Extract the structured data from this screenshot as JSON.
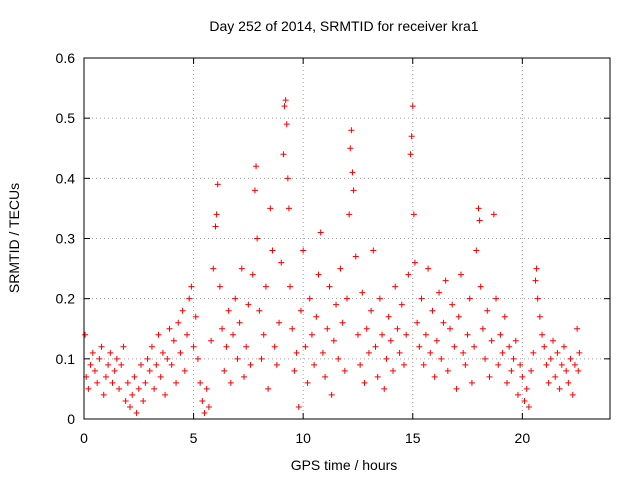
{
  "chart_data": {
    "type": "scatter",
    "title": "Day 252 of 2014, SRMTID for receiver kra1",
    "xlabel": "GPS time / hours",
    "ylabel": "SRMTID / TECUs",
    "xlim": [
      0,
      24
    ],
    "ylim": [
      0,
      0.6
    ],
    "x_ticks": [
      0,
      5,
      10,
      15,
      20
    ],
    "x_tick_labels": [
      "0",
      "5",
      "10",
      "15",
      "20"
    ],
    "y_ticks": [
      0,
      0.1,
      0.2,
      0.3,
      0.4,
      0.5,
      0.6
    ],
    "y_tick_labels": [
      "0",
      "0.1",
      "0.2",
      "0.3",
      "0.4",
      "0.5",
      "0.6"
    ],
    "grid": true,
    "marker": "+",
    "color": "#ff0000",
    "series": [
      {
        "name": "SRMTID",
        "points": [
          [
            0.05,
            0.14
          ],
          [
            0.1,
            0.07
          ],
          [
            0.2,
            0.05
          ],
          [
            0.3,
            0.09
          ],
          [
            0.4,
            0.11
          ],
          [
            0.5,
            0.08
          ],
          [
            0.6,
            0.06
          ],
          [
            0.7,
            0.1
          ],
          [
            0.8,
            0.12
          ],
          [
            0.9,
            0.04
          ],
          [
            1.0,
            0.07
          ],
          [
            1.1,
            0.09
          ],
          [
            1.2,
            0.11
          ],
          [
            1.3,
            0.06
          ],
          [
            1.4,
            0.08
          ],
          [
            1.5,
            0.1
          ],
          [
            1.6,
            0.05
          ],
          [
            1.7,
            0.09
          ],
          [
            1.8,
            0.12
          ],
          [
            1.9,
            0.03
          ],
          [
            2.0,
            0.06
          ],
          [
            2.1,
            0.02
          ],
          [
            2.2,
            0.04
          ],
          [
            2.3,
            0.07
          ],
          [
            2.4,
            0.01
          ],
          [
            2.5,
            0.05
          ],
          [
            2.6,
            0.09
          ],
          [
            2.7,
            0.03
          ],
          [
            2.8,
            0.06
          ],
          [
            2.9,
            0.1
          ],
          [
            3.0,
            0.08
          ],
          [
            3.1,
            0.12
          ],
          [
            3.2,
            0.05
          ],
          [
            3.3,
            0.09
          ],
          [
            3.4,
            0.14
          ],
          [
            3.5,
            0.07
          ],
          [
            3.6,
            0.11
          ],
          [
            3.7,
            0.04
          ],
          [
            3.8,
            0.1
          ],
          [
            3.9,
            0.15
          ],
          [
            4.0,
            0.09
          ],
          [
            4.1,
            0.13
          ],
          [
            4.2,
            0.06
          ],
          [
            4.3,
            0.16
          ],
          [
            4.4,
            0.11
          ],
          [
            4.5,
            0.18
          ],
          [
            4.6,
            0.08
          ],
          [
            4.7,
            0.14
          ],
          [
            4.8,
            0.2
          ],
          [
            4.9,
            0.22
          ],
          [
            5.0,
            0.12
          ],
          [
            5.1,
            0.17
          ],
          [
            5.2,
            0.1
          ],
          [
            5.3,
            0.06
          ],
          [
            5.4,
            0.03
          ],
          [
            5.5,
            0.01
          ],
          [
            5.6,
            0.05
          ],
          [
            5.7,
            0.02
          ],
          [
            5.8,
            0.13
          ],
          [
            5.9,
            0.25
          ],
          [
            6.0,
            0.32
          ],
          [
            6.05,
            0.34
          ],
          [
            6.1,
            0.39
          ],
          [
            6.2,
            0.22
          ],
          [
            6.3,
            0.15
          ],
          [
            6.4,
            0.08
          ],
          [
            6.5,
            0.12
          ],
          [
            6.6,
            0.18
          ],
          [
            6.7,
            0.06
          ],
          [
            6.8,
            0.14
          ],
          [
            6.9,
            0.2
          ],
          [
            7.0,
            0.1
          ],
          [
            7.1,
            0.16
          ],
          [
            7.2,
            0.25
          ],
          [
            7.3,
            0.07
          ],
          [
            7.4,
            0.12
          ],
          [
            7.5,
            0.19
          ],
          [
            7.6,
            0.09
          ],
          [
            7.7,
            0.24
          ],
          [
            7.8,
            0.38
          ],
          [
            7.85,
            0.42
          ],
          [
            7.9,
            0.3
          ],
          [
            8.0,
            0.18
          ],
          [
            8.1,
            0.1
          ],
          [
            8.2,
            0.14
          ],
          [
            8.3,
            0.22
          ],
          [
            8.4,
            0.05
          ],
          [
            8.5,
            0.35
          ],
          [
            8.6,
            0.28
          ],
          [
            8.7,
            0.12
          ],
          [
            8.8,
            0.09
          ],
          [
            8.9,
            0.16
          ],
          [
            9.0,
            0.26
          ],
          [
            9.1,
            0.44
          ],
          [
            9.15,
            0.52
          ],
          [
            9.2,
            0.53
          ],
          [
            9.25,
            0.49
          ],
          [
            9.3,
            0.4
          ],
          [
            9.35,
            0.35
          ],
          [
            9.4,
            0.22
          ],
          [
            9.5,
            0.15
          ],
          [
            9.6,
            0.08
          ],
          [
            9.7,
            0.11
          ],
          [
            9.8,
            0.02
          ],
          [
            9.9,
            0.18
          ],
          [
            10.0,
            0.28
          ],
          [
            10.1,
            0.12
          ],
          [
            10.2,
            0.06
          ],
          [
            10.3,
            0.2
          ],
          [
            10.4,
            0.14
          ],
          [
            10.5,
            0.09
          ],
          [
            10.6,
            0.17
          ],
          [
            10.7,
            0.24
          ],
          [
            10.8,
            0.31
          ],
          [
            10.9,
            0.11
          ],
          [
            11.0,
            0.07
          ],
          [
            11.1,
            0.15
          ],
          [
            11.2,
            0.22
          ],
          [
            11.3,
            0.04
          ],
          [
            11.4,
            0.13
          ],
          [
            11.5,
            0.19
          ],
          [
            11.6,
            0.1
          ],
          [
            11.7,
            0.25
          ],
          [
            11.8,
            0.16
          ],
          [
            11.9,
            0.08
          ],
          [
            12.0,
            0.2
          ],
          [
            12.1,
            0.34
          ],
          [
            12.15,
            0.45
          ],
          [
            12.2,
            0.48
          ],
          [
            12.25,
            0.41
          ],
          [
            12.3,
            0.38
          ],
          [
            12.4,
            0.27
          ],
          [
            12.5,
            0.14
          ],
          [
            12.6,
            0.09
          ],
          [
            12.7,
            0.21
          ],
          [
            12.8,
            0.06
          ],
          [
            12.9,
            0.15
          ],
          [
            13.0,
            0.11
          ],
          [
            13.1,
            0.18
          ],
          [
            13.2,
            0.28
          ],
          [
            13.3,
            0.12
          ],
          [
            13.4,
            0.07
          ],
          [
            13.5,
            0.2
          ],
          [
            13.6,
            0.14
          ],
          [
            13.7,
            0.05
          ],
          [
            13.8,
            0.1
          ],
          [
            13.9,
            0.17
          ],
          [
            14.0,
            0.13
          ],
          [
            14.1,
            0.08
          ],
          [
            14.2,
            0.22
          ],
          [
            14.3,
            0.15
          ],
          [
            14.4,
            0.11
          ],
          [
            14.5,
            0.19
          ],
          [
            14.6,
            0.09
          ],
          [
            14.7,
            0.14
          ],
          [
            14.8,
            0.24
          ],
          [
            14.9,
            0.44
          ],
          [
            14.95,
            0.47
          ],
          [
            15.0,
            0.52
          ],
          [
            15.05,
            0.34
          ],
          [
            15.1,
            0.26
          ],
          [
            15.2,
            0.16
          ],
          [
            15.3,
            0.12
          ],
          [
            15.4,
            0.2
          ],
          [
            15.5,
            0.09
          ],
          [
            15.6,
            0.14
          ],
          [
            15.7,
            0.25
          ],
          [
            15.8,
            0.11
          ],
          [
            15.9,
            0.18
          ],
          [
            16.0,
            0.07
          ],
          [
            16.1,
            0.13
          ],
          [
            16.2,
            0.21
          ],
          [
            16.3,
            0.1
          ],
          [
            16.4,
            0.16
          ],
          [
            16.5,
            0.23
          ],
          [
            16.6,
            0.08
          ],
          [
            16.7,
            0.15
          ],
          [
            16.8,
            0.19
          ],
          [
            16.9,
            0.12
          ],
          [
            17.0,
            0.05
          ],
          [
            17.1,
            0.17
          ],
          [
            17.2,
            0.24
          ],
          [
            17.3,
            0.11
          ],
          [
            17.4,
            0.09
          ],
          [
            17.5,
            0.14
          ],
          [
            17.6,
            0.2
          ],
          [
            17.7,
            0.06
          ],
          [
            17.8,
            0.12
          ],
          [
            17.9,
            0.28
          ],
          [
            18.0,
            0.35
          ],
          [
            18.05,
            0.33
          ],
          [
            18.1,
            0.22
          ],
          [
            18.2,
            0.15
          ],
          [
            18.3,
            0.1
          ],
          [
            18.4,
            0.18
          ],
          [
            18.5,
            0.07
          ],
          [
            18.6,
            0.13
          ],
          [
            18.7,
            0.34
          ],
          [
            18.8,
            0.2
          ],
          [
            18.9,
            0.09
          ],
          [
            19.0,
            0.14
          ],
          [
            19.1,
            0.11
          ],
          [
            19.2,
            0.17
          ],
          [
            19.3,
            0.06
          ],
          [
            19.4,
            0.12
          ],
          [
            19.5,
            0.08
          ],
          [
            19.6,
            0.1
          ],
          [
            19.7,
            0.13
          ],
          [
            19.8,
            0.04
          ],
          [
            19.9,
            0.09
          ],
          [
            20.0,
            0.07
          ],
          [
            20.1,
            0.03
          ],
          [
            20.2,
            0.05
          ],
          [
            20.3,
            0.02
          ],
          [
            20.4,
            0.08
          ],
          [
            20.5,
            0.11
          ],
          [
            20.6,
            0.23
          ],
          [
            20.65,
            0.25
          ],
          [
            20.7,
            0.2
          ],
          [
            20.8,
            0.17
          ],
          [
            20.9,
            0.14
          ],
          [
            21.0,
            0.12
          ],
          [
            21.1,
            0.09
          ],
          [
            21.2,
            0.06
          ],
          [
            21.3,
            0.1
          ],
          [
            21.4,
            0.13
          ],
          [
            21.5,
            0.07
          ],
          [
            21.6,
            0.11
          ],
          [
            21.7,
            0.05
          ],
          [
            21.8,
            0.09
          ],
          [
            21.9,
            0.12
          ],
          [
            22.0,
            0.08
          ],
          [
            22.1,
            0.06
          ],
          [
            22.2,
            0.1
          ],
          [
            22.3,
            0.04
          ],
          [
            22.4,
            0.09
          ],
          [
            22.5,
            0.15
          ],
          [
            22.55,
            0.08
          ],
          [
            22.6,
            0.11
          ]
        ]
      }
    ]
  }
}
